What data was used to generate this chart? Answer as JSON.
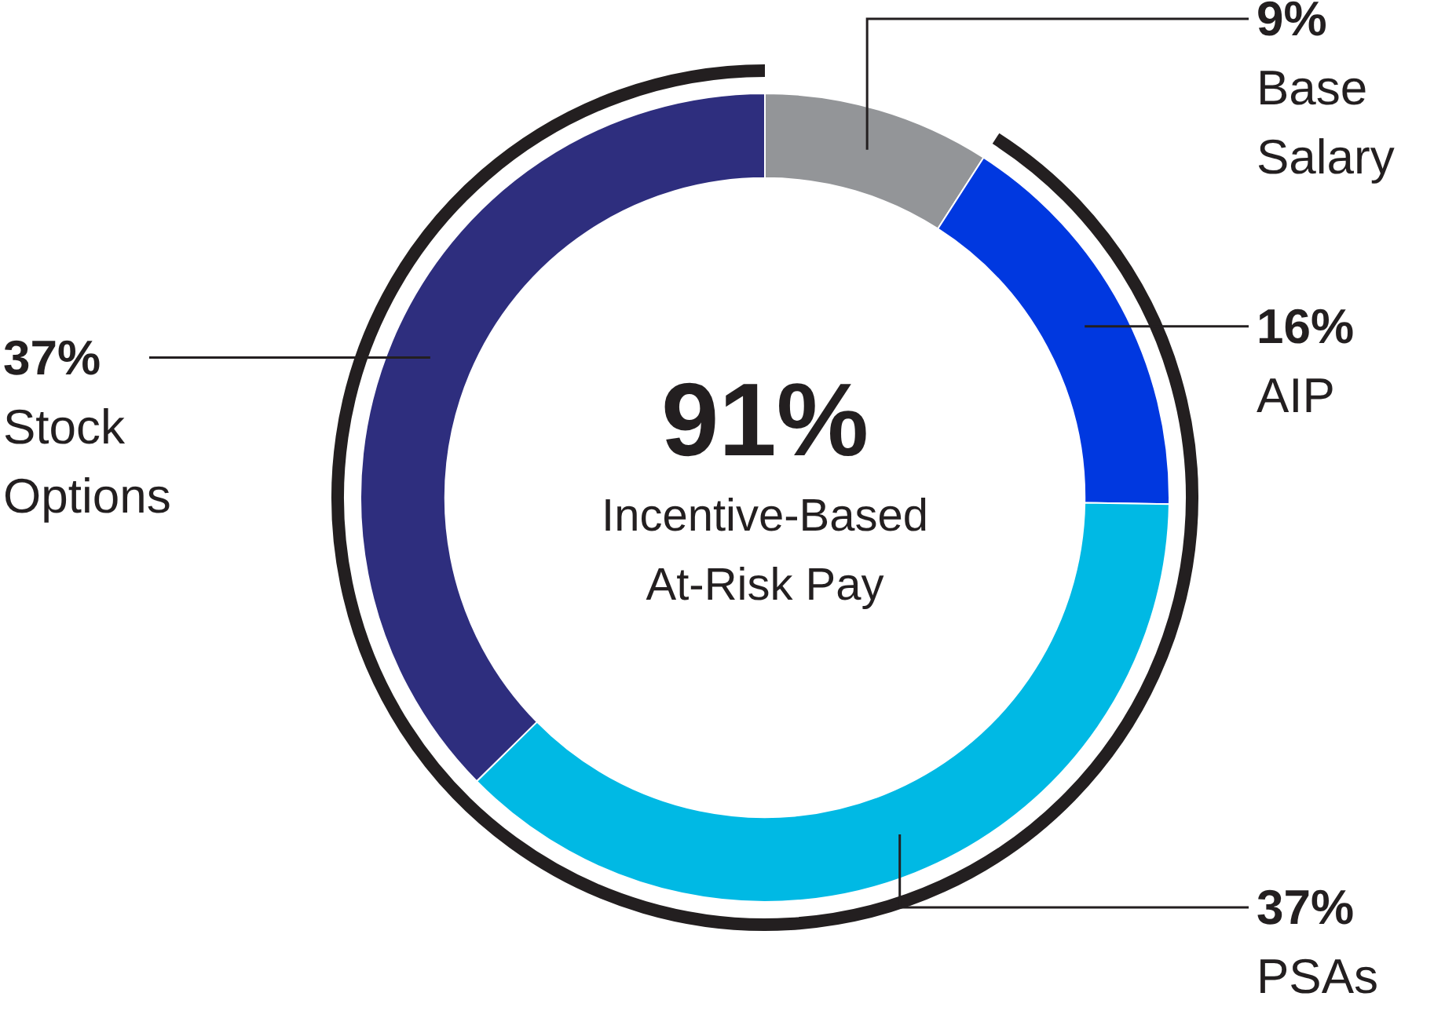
{
  "chart_data": {
    "type": "donut",
    "categories": [
      "Base Salary",
      "AIP",
      "PSAs",
      "Stock Options"
    ],
    "values": [
      9,
      16,
      37,
      37
    ],
    "colors": [
      "#939598",
      "#0038e0",
      "#00b9e4",
      "#2e2e7e"
    ],
    "value_labels": [
      "9%",
      "16%",
      "37%",
      "37%"
    ],
    "annotations": [
      "91%",
      "Incentive-Based At-Risk Pay"
    ],
    "legend": false
  }
}
